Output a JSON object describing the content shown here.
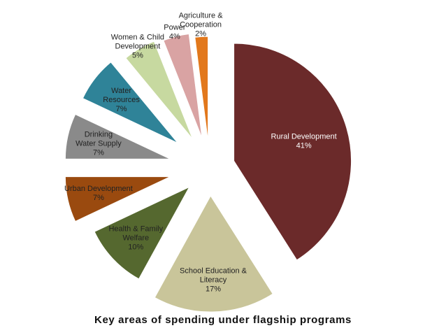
{
  "chart_data": {
    "type": "pie",
    "title": "Key areas of spending under flagship programs",
    "exploded": true,
    "slices": [
      {
        "label": [
          "Rural Development",
          "41%"
        ],
        "value": 41,
        "color": "#6b2a2a",
        "light": true
      },
      {
        "label": [
          "School Education &",
          "Literacy",
          "17%"
        ],
        "value": 17,
        "color": "#c9c59a",
        "light": false
      },
      {
        "label": [
          "Health & Family",
          "Welfare",
          "10%"
        ],
        "value": 10,
        "color": "#55682f",
        "light": false
      },
      {
        "label": [
          "Urban Development",
          "7%"
        ],
        "value": 7,
        "color": "#9a4a0f",
        "light": false
      },
      {
        "label": [
          "Drinking",
          "Water Supply",
          "7%"
        ],
        "value": 7,
        "color": "#8a8a8a",
        "light": false
      },
      {
        "label": [
          "Water",
          "Resources",
          "7%"
        ],
        "value": 7,
        "color": "#2f8398",
        "light": false
      },
      {
        "label": [
          "Women & Child",
          "Development",
          "5%"
        ],
        "value": 5,
        "color": "#c7d9a0",
        "light": false
      },
      {
        "label": [
          "Power",
          "4%"
        ],
        "value": 4,
        "color": "#d9a3a3",
        "light": false
      },
      {
        "label": [
          "Agriculture &",
          "Cooperation",
          "2%"
        ],
        "value": 2,
        "color": "#e2781c",
        "light": false
      }
    ]
  }
}
